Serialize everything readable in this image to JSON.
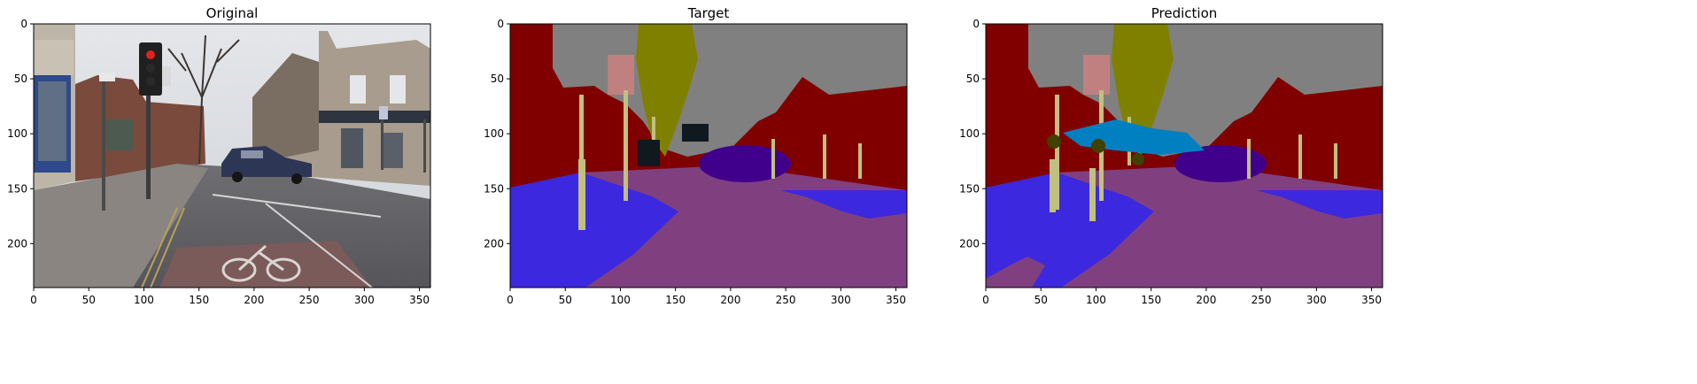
{
  "figure": {
    "panels": [
      {
        "title": "Original"
      },
      {
        "title": "Target"
      },
      {
        "title": "Prediction"
      }
    ],
    "x_ticks": [
      "0",
      "50",
      "100",
      "150",
      "200",
      "250",
      "300",
      "350"
    ],
    "y_ticks": [
      "0",
      "50",
      "100",
      "150",
      "200"
    ],
    "x_range": [
      0,
      360
    ],
    "y_range": [
      240,
      0
    ]
  },
  "colors": {
    "sky": "#808080",
    "building": "#800000",
    "pole": "#c0c080",
    "road": "#804080",
    "sidewalk": "#3c28de",
    "tree": "#808000",
    "sign": "#c08080",
    "car": "#40008c",
    "fence": "#004080",
    "pedestrian": "#404000",
    "bicyclist": "#0080c0"
  }
}
